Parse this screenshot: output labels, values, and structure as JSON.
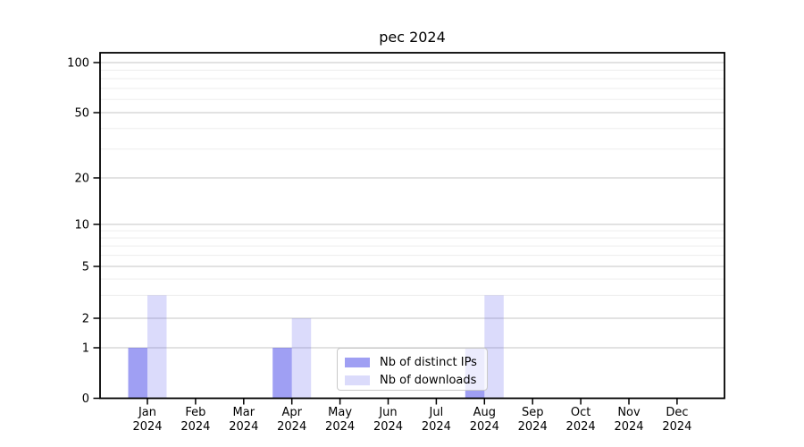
{
  "title": "pec 2024",
  "chart_data": {
    "type": "bar",
    "title": "pec 2024",
    "categories": [
      "Jan",
      "Feb",
      "Mar",
      "Apr",
      "May",
      "Jun",
      "Jul",
      "Aug",
      "Sep",
      "Oct",
      "Nov",
      "Dec"
    ],
    "x_tick_second_line": "2024",
    "series": [
      {
        "name": "Nb of distinct IPs",
        "color": "rgba(90,90,235,0.58)",
        "values": [
          1,
          0,
          0,
          1,
          0,
          0,
          0,
          1,
          0,
          0,
          0,
          0
        ]
      },
      {
        "name": "Nb of downloads",
        "color": "rgba(90,90,235,0.22)",
        "values": [
          3,
          0,
          0,
          2,
          0,
          0,
          0,
          3,
          0,
          0,
          0,
          0
        ]
      }
    ],
    "y_axis": {
      "scale": "log-like (symlog/asinh) with zero baseline",
      "major_ticks": [
        0,
        1,
        2,
        5,
        10,
        20,
        50,
        100
      ],
      "minor_gridline_values": [
        3,
        4,
        6,
        7,
        8,
        9,
        30,
        40,
        60,
        70,
        80,
        90
      ],
      "range": [
        0,
        120
      ]
    },
    "xlabel": "",
    "ylabel": "",
    "grid": true,
    "legend_position": "inside-bottom-center",
    "legend_entries": [
      "Nb of distinct IPs",
      "Nb of downloads"
    ]
  },
  "colors": {
    "bar_distinct_ips": "rgba(90,90,235,0.58)",
    "bar_downloads": "rgba(90,90,235,0.22)",
    "major_grid": "#c6c6c6",
    "minor_grid": "#ededed",
    "spine": "#000000",
    "tick_text": "#000000",
    "legend_border": "#c9c9c9",
    "background": "#ffffff"
  }
}
